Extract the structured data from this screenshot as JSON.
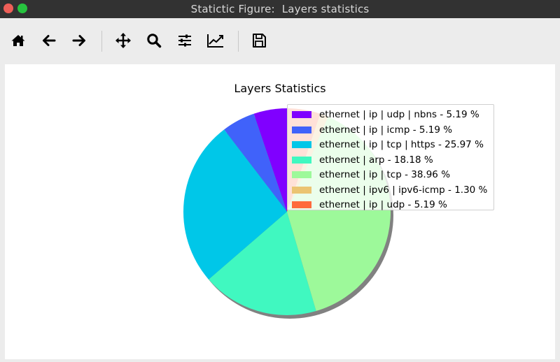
{
  "window": {
    "title": "Statictic Figure:  Layers statistics"
  },
  "toolbar": {
    "buttons": [
      {
        "name": "home",
        "icon": "home-icon"
      },
      {
        "name": "back",
        "icon": "arrow-left-icon"
      },
      {
        "name": "forward",
        "icon": "arrow-right-icon"
      },
      {
        "name": "pan",
        "icon": "move-icon"
      },
      {
        "name": "zoom",
        "icon": "magnifier-icon"
      },
      {
        "name": "configure-subplots",
        "icon": "sliders-icon"
      },
      {
        "name": "edit-axis",
        "icon": "line-chart-icon"
      },
      {
        "name": "save",
        "icon": "floppy-disk-icon"
      }
    ]
  },
  "chart_data": {
    "type": "pie",
    "title": "Layers Statistics",
    "shadow": true,
    "legend_position": "upper-right",
    "slices": [
      {
        "label": "ethernet | ip | udp | nbns - 5.19 %",
        "value": 5.19,
        "color": "#8000ff"
      },
      {
        "label": "ethernet | ip | icmp - 5.19 %",
        "value": 5.19,
        "color": "#4062fa"
      },
      {
        "label": "ethernet | ip | tcp | https - 25.97 %",
        "value": 25.97,
        "color": "#00c7e8"
      },
      {
        "label": "ethernet | arp - 18.18 %",
        "value": 18.18,
        "color": "#40f8c0"
      },
      {
        "label": "ethernet | ip | tcp - 38.96 %",
        "value": 38.96,
        "color": "#9df99a"
      },
      {
        "label": "ethernet | ipv6 | ipv6-icmp - 1.30 %",
        "value": 1.3,
        "color": "#ebc472"
      },
      {
        "label": "ethernet | ip | udp - 5.19 %",
        "value": 5.19,
        "color": "#ff6a3c"
      }
    ]
  }
}
